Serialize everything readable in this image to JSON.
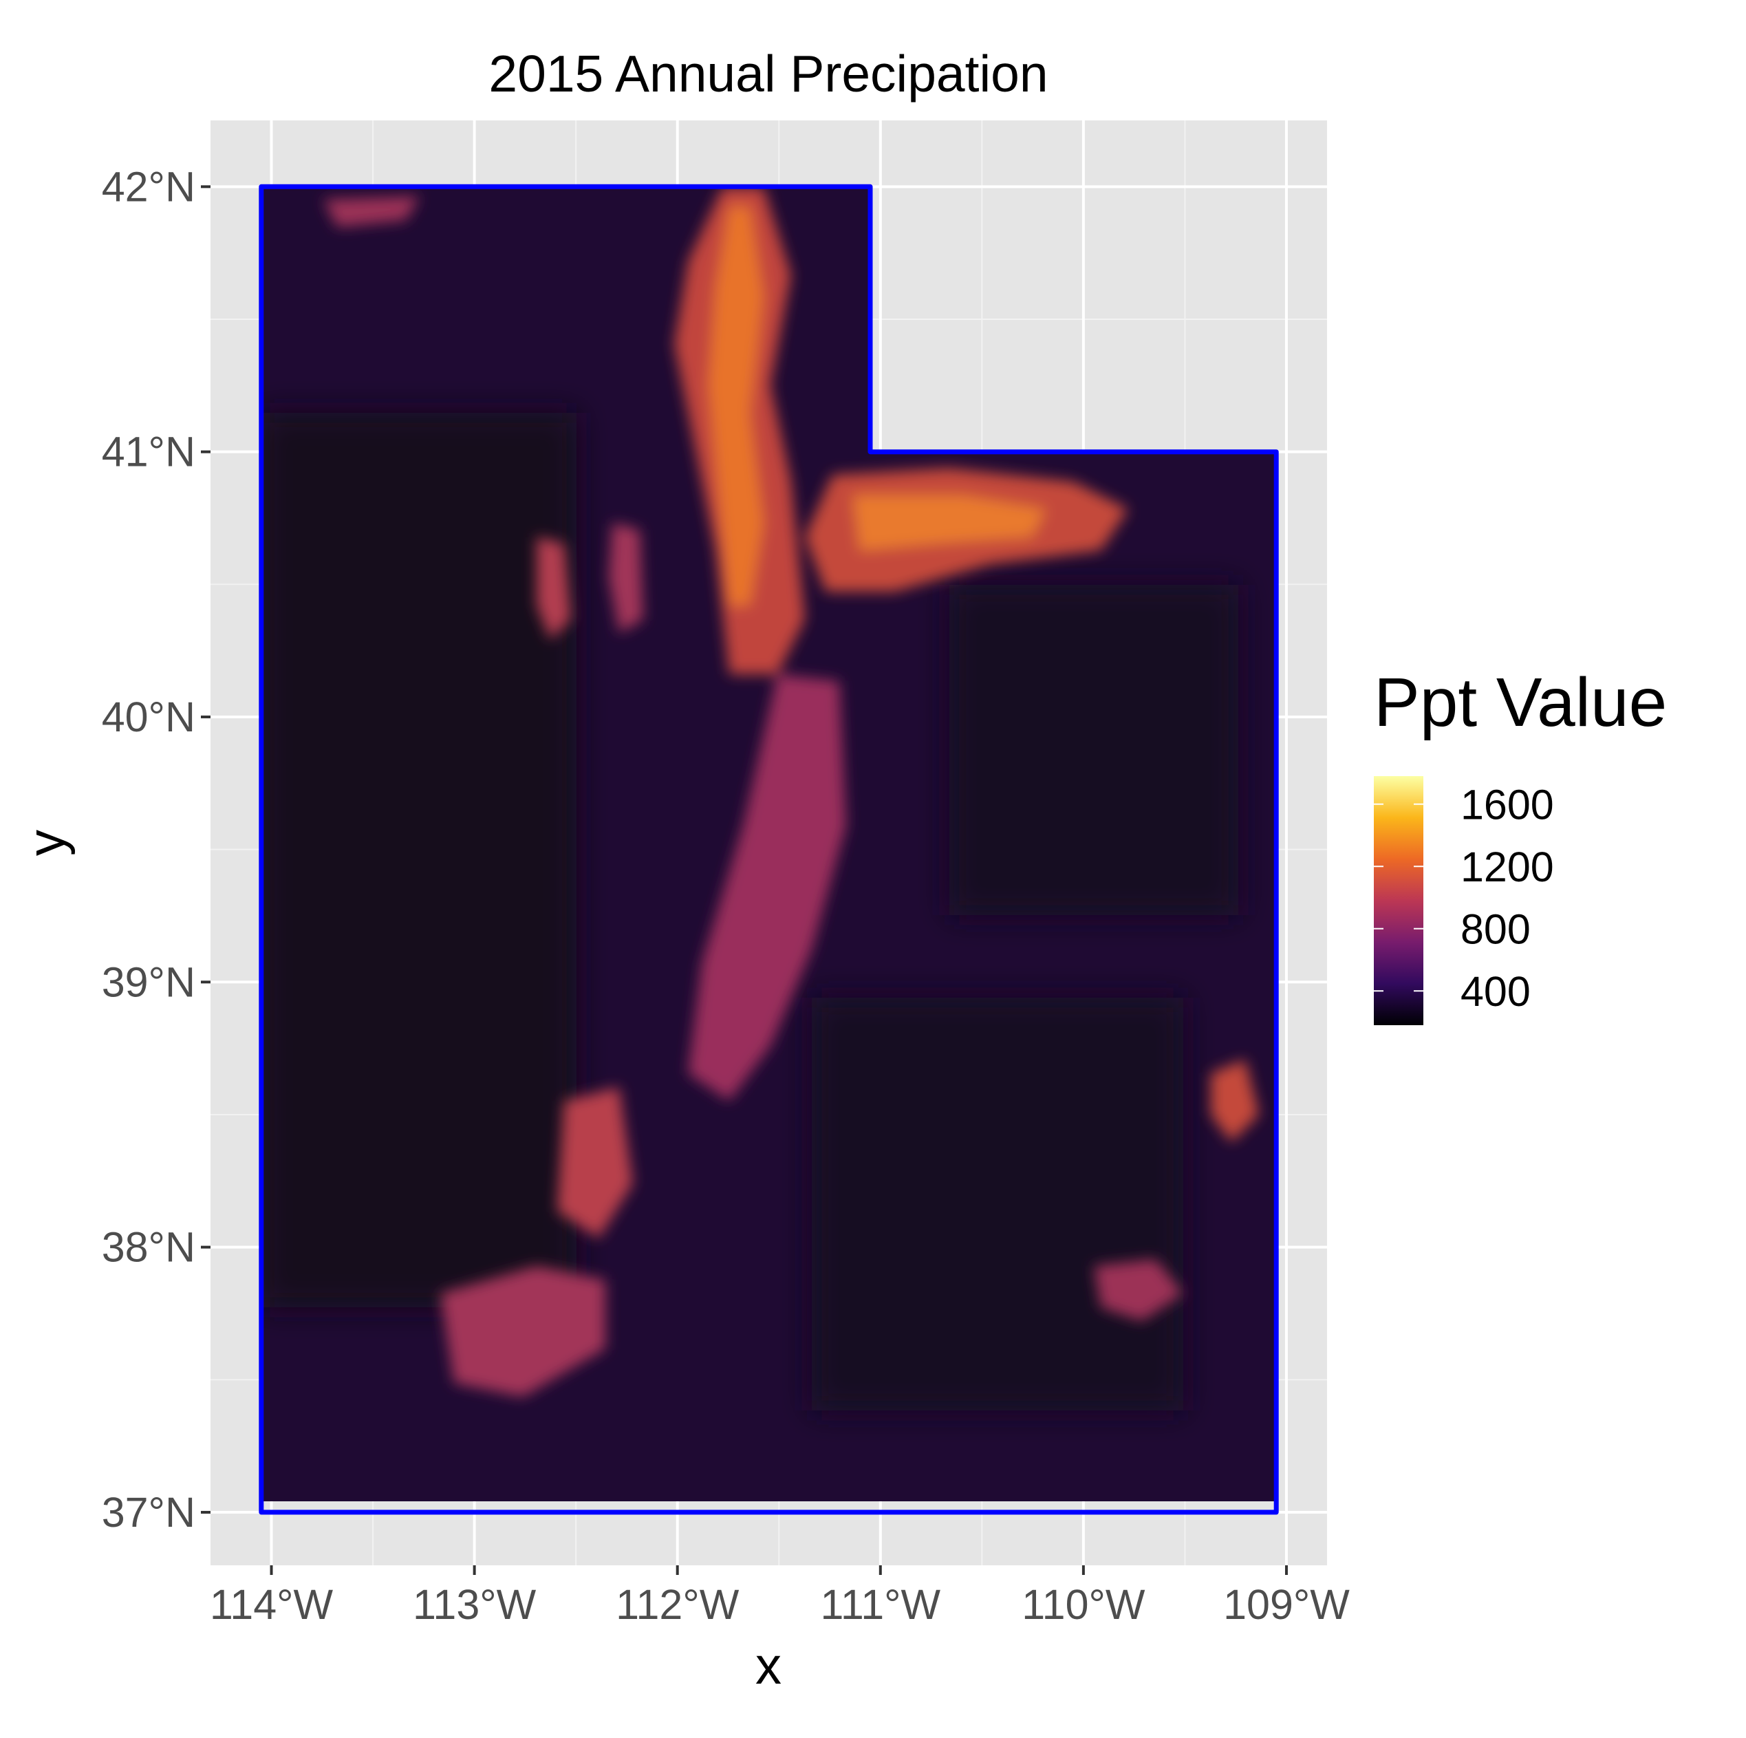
{
  "map": {
    "title": "2015 Annual Precipation",
    "xlabel": "x",
    "ylabel": "y",
    "x_ticks": [
      "114°W",
      "113°W",
      "112°W",
      "111°W",
      "110°W",
      "109°W"
    ],
    "y_ticks": [
      "42°N",
      "41°N",
      "40°N",
      "39°N",
      "38°N",
      "37°N"
    ],
    "x_range": [
      -114.3,
      -108.8
    ],
    "y_range": [
      36.8,
      42.25
    ],
    "panel_background": "#e5e5e5",
    "grid": true,
    "missing_region_color": "#6e6e6e",
    "boundary_color": "#0000ff",
    "state_boundary": [
      [
        -114.05,
        42.0
      ],
      [
        -111.05,
        42.0
      ],
      [
        -111.05,
        41.0
      ],
      [
        -109.05,
        41.0
      ],
      [
        -109.05,
        37.0
      ],
      [
        -114.05,
        37.0
      ]
    ],
    "missing_region": [
      [
        -111.05,
        42.0
      ],
      [
        -109.05,
        42.0
      ],
      [
        -109.05,
        41.0
      ],
      [
        -111.05,
        41.0
      ]
    ]
  },
  "legend": {
    "title": "Ppt Value",
    "position": "right",
    "labels": [
      "1600",
      "1200",
      "800",
      "400"
    ],
    "label_values": [
      1600,
      1200,
      800,
      400
    ],
    "range": [
      180,
      1780
    ],
    "colormap": "inferno",
    "colors": [
      "#000004",
      "#320a5e",
      "#781c6d",
      "#bc3754",
      "#ed6925",
      "#fbb61a",
      "#fcffa4"
    ]
  }
}
